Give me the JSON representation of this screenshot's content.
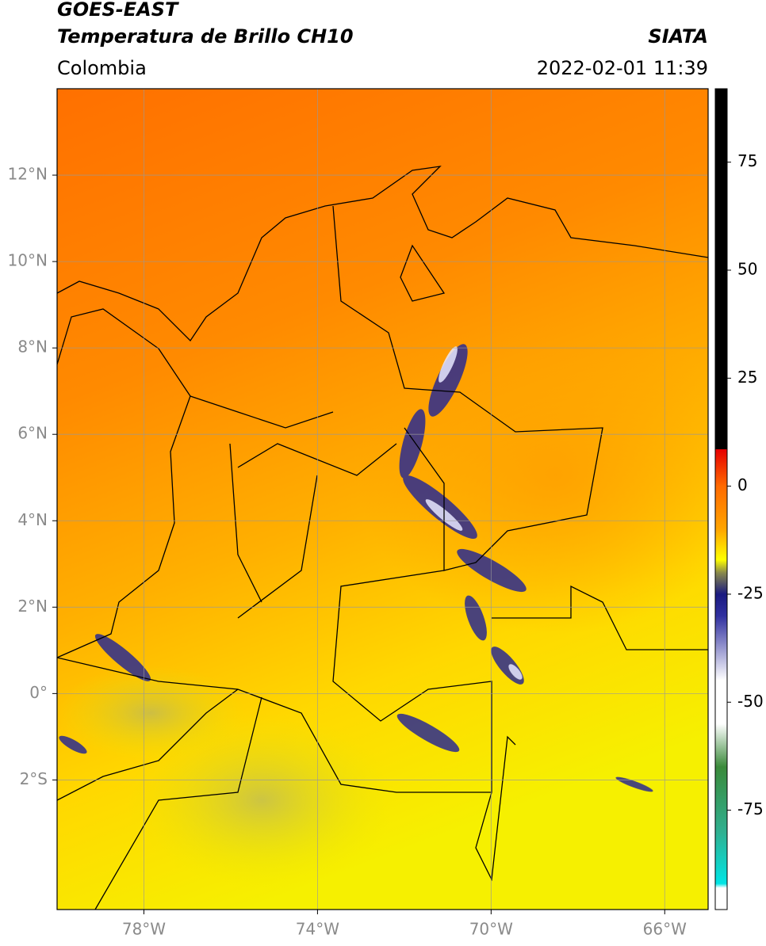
{
  "chart_data": {
    "type": "map",
    "title": "GOES-EAST",
    "subtitle": "Temperatura de Brillo CH10",
    "source": "SIATA",
    "region": "Colombia",
    "datetime": "2022-02-01 11:39",
    "xlim": [
      -80,
      -65
    ],
    "ylim": [
      -5,
      14
    ],
    "xticks": [
      {
        "value": -78,
        "label": "78°W"
      },
      {
        "value": -74,
        "label": "74°W"
      },
      {
        "value": -70,
        "label": "70°W"
      },
      {
        "value": -66,
        "label": "66°W"
      }
    ],
    "yticks": [
      {
        "value": -2,
        "label": "2°S"
      },
      {
        "value": 0,
        "label": "0°"
      },
      {
        "value": 2,
        "label": "2°N"
      },
      {
        "value": 4,
        "label": "4°N"
      },
      {
        "value": 6,
        "label": "6°N"
      },
      {
        "value": 8,
        "label": "8°N"
      },
      {
        "value": 10,
        "label": "10°N"
      },
      {
        "value": 12,
        "label": "12°N"
      }
    ],
    "grid": true,
    "colorbar": {
      "lim": [
        -98,
        92
      ],
      "ticks": [
        -75,
        -50,
        -25,
        0,
        25,
        50,
        75
      ],
      "colormap": [
        {
          "value": 92,
          "color": "#000000"
        },
        {
          "value": 8.6,
          "color": "#000000"
        },
        {
          "value": 8.5,
          "color": "#e60000"
        },
        {
          "value": 0,
          "color": "#ff6a00"
        },
        {
          "value": -10,
          "color": "#ffa500"
        },
        {
          "value": -17,
          "color": "#ffff00"
        },
        {
          "value": -20,
          "color": "#8a8a4a"
        },
        {
          "value": -25,
          "color": "#1a1a80"
        },
        {
          "value": -30,
          "color": "#3030a0"
        },
        {
          "value": -45,
          "color": "#ffffff"
        },
        {
          "value": -55,
          "color": "#ffffff"
        },
        {
          "value": -65,
          "color": "#3a8a3a"
        },
        {
          "value": -80,
          "color": "#30b090"
        },
        {
          "value": -92,
          "color": "#00e5e5"
        },
        {
          "value": -93,
          "color": "#ffffff"
        },
        {
          "value": -98,
          "color": "#ffffff"
        }
      ]
    }
  }
}
